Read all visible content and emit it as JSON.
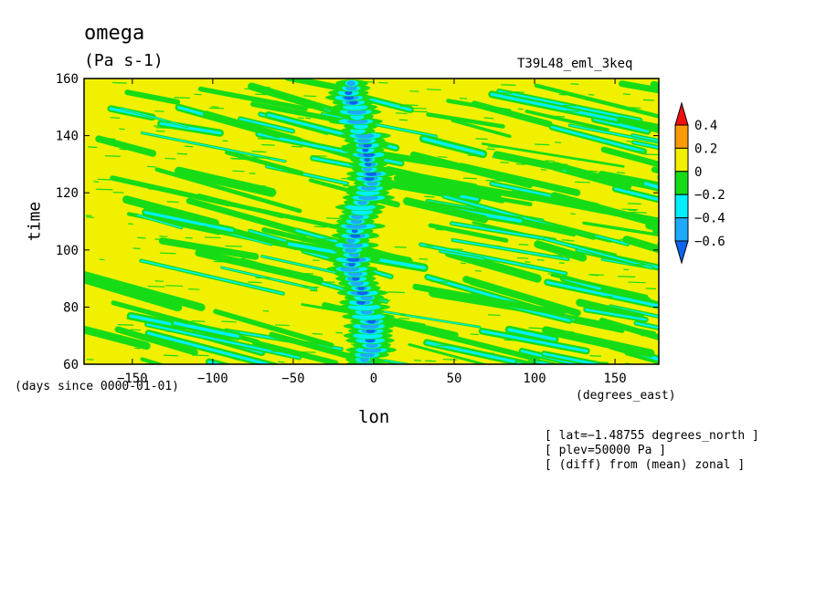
{
  "chart_data": {
    "type": "heatmap",
    "title": "omega",
    "units": "(Pa s-1)",
    "run_name": "T39L48_eml_3keq",
    "xlabel": "lon",
    "ylabel": "time",
    "x_units_label": "(degrees_east)",
    "y_units_label": "(days since 0000-01-01)",
    "xlim": [
      -180,
      177.2
    ],
    "ylim": [
      60,
      160
    ],
    "x_ticks": [
      -150,
      -100,
      -50,
      0,
      50,
      100,
      150
    ],
    "x_tick_labels": [
      "−150",
      "−100",
      "−50",
      "0",
      "50",
      "100",
      "150"
    ],
    "y_ticks": [
      60,
      80,
      100,
      120,
      140,
      160
    ],
    "y_tick_labels": [
      "60",
      "80",
      "100",
      "120",
      "140",
      "160"
    ],
    "colorbar": {
      "levels": [
        -0.6,
        -0.4,
        -0.2,
        0,
        0.2,
        0.4
      ],
      "labels": [
        "−0.6",
        "−0.4",
        "−0.2",
        "0",
        "0.2",
        "0.4"
      ],
      "colors": [
        "#0a64f0",
        "#1eaaff",
        "#00f0ff",
        "#16dc16",
        "#f0f000",
        "#ff9a00",
        "#f01010"
      ],
      "extend": "both"
    },
    "field_description": "dominant yellow background with green/cyan streaks tilted westward in time; strong negative (blue) band near lon 0",
    "grid": false
  },
  "info_lines": [
    "[ lat=−1.48755 degrees_north ]",
    "[ plev=50000 Pa ]",
    "[ (diff) from (mean) zonal ]"
  ]
}
